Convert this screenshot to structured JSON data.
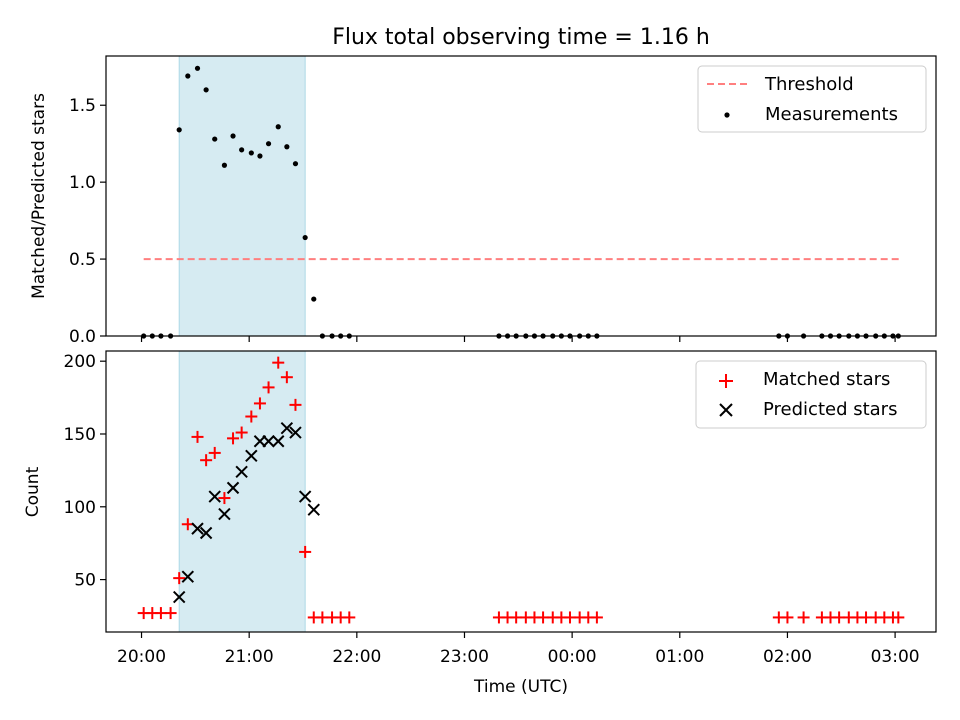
{
  "chart_data": {
    "title": "Flux total observing time = 1.16 h",
    "xlabel": "Time (UTC)",
    "x_tick_labels": [
      "20:00",
      "21:00",
      "22:00",
      "23:00",
      "00:00",
      "01:00",
      "02:00",
      "03:00"
    ],
    "x_tick_hours": [
      0,
      1,
      2,
      3,
      4,
      5,
      6,
      7
    ],
    "x_axis_start_time": "20:00",
    "xlim_hours": [
      -0.33,
      7.38
    ],
    "highlight_span_hours": [
      0.35,
      1.52
    ],
    "highlight_color": "#add8e6",
    "panels": [
      {
        "type": "scatter",
        "ylabel": "Matched/Predicted stars",
        "ylim": [
          0,
          1.82
        ],
        "yticks": [
          0.0,
          0.5,
          1.0,
          1.5
        ],
        "ytick_labels": [
          "0.0",
          "0.5",
          "1.0",
          "1.5"
        ],
        "legend_position": "top-right",
        "threshold": {
          "name": "Threshold",
          "value": 0.5,
          "x_range_hours": [
            0.02,
            7.05
          ],
          "color": "#ff7f7f"
        },
        "series": [
          {
            "name": "Measurements",
            "marker": "dot",
            "color": "#000000",
            "x": [
              0.02,
              0.1,
              0.18,
              0.27,
              0.35,
              0.43,
              0.52,
              0.6,
              0.68,
              0.77,
              0.85,
              0.93,
              1.02,
              1.1,
              1.18,
              1.27,
              1.35,
              1.43,
              1.52,
              1.6,
              1.68,
              1.77,
              1.85,
              1.93,
              3.32,
              3.4,
              3.48,
              3.57,
              3.65,
              3.73,
              3.82,
              3.9,
              3.98,
              4.07,
              4.15,
              4.23,
              5.92,
              6.0,
              6.15,
              6.32,
              6.4,
              6.48,
              6.57,
              6.65,
              6.73,
              6.82,
              6.9,
              6.98,
              7.03
            ],
            "y": [
              0,
              0,
              0,
              0,
              1.34,
              1.69,
              1.74,
              1.6,
              1.28,
              1.11,
              1.3,
              1.21,
              1.19,
              1.17,
              1.25,
              1.36,
              1.23,
              1.12,
              0.64,
              0.24,
              0,
              0,
              0,
              0,
              0,
              0,
              0,
              0,
              0,
              0,
              0,
              0,
              0,
              0,
              0,
              0,
              0,
              0,
              0,
              0,
              0,
              0,
              0,
              0,
              0,
              0,
              0,
              0,
              0
            ]
          }
        ]
      },
      {
        "type": "scatter",
        "ylabel": "Count",
        "ylim": [
          14,
          207
        ],
        "yticks": [
          50,
          100,
          150,
          200
        ],
        "ytick_labels": [
          "50",
          "100",
          "150",
          "200"
        ],
        "legend_position": "top-right",
        "series": [
          {
            "name": "Matched stars",
            "marker": "plus",
            "color": "#ff0000",
            "x": [
              0.02,
              0.1,
              0.18,
              0.27,
              0.35,
              0.43,
              0.52,
              0.6,
              0.68,
              0.77,
              0.85,
              0.93,
              1.02,
              1.1,
              1.18,
              1.27,
              1.35,
              1.43,
              1.52,
              1.6,
              1.68,
              1.77,
              1.85,
              1.93,
              3.32,
              3.4,
              3.48,
              3.57,
              3.65,
              3.73,
              3.82,
              3.9,
              3.98,
              4.07,
              4.15,
              4.23,
              5.92,
              6.0,
              6.15,
              6.32,
              6.4,
              6.48,
              6.57,
              6.65,
              6.73,
              6.82,
              6.9,
              6.98,
              7.03
            ],
            "y": [
              27,
              27,
              27,
              27,
              51,
              88,
              148,
              132,
              137,
              106,
              147,
              151,
              162,
              171,
              182,
              199,
              189,
              170,
              69,
              24,
              24,
              24,
              24,
              24,
              24,
              24,
              24,
              24,
              24,
              24,
              24,
              24,
              24,
              24,
              24,
              24,
              24,
              24,
              24,
              24,
              24,
              24,
              24,
              24,
              24,
              24,
              24,
              24,
              24
            ]
          },
          {
            "name": "Predicted stars",
            "marker": "x",
            "color": "#000000",
            "x": [
              0.35,
              0.43,
              0.52,
              0.6,
              0.68,
              0.77,
              0.85,
              0.93,
              1.02,
              1.1,
              1.18,
              1.27,
              1.35,
              1.43,
              1.52,
              1.6
            ],
            "y": [
              38,
              52,
              85,
              82,
              107,
              95,
              113,
              124,
              135,
              145,
              145,
              145,
              154,
              151,
              107,
              98
            ]
          }
        ]
      }
    ]
  }
}
